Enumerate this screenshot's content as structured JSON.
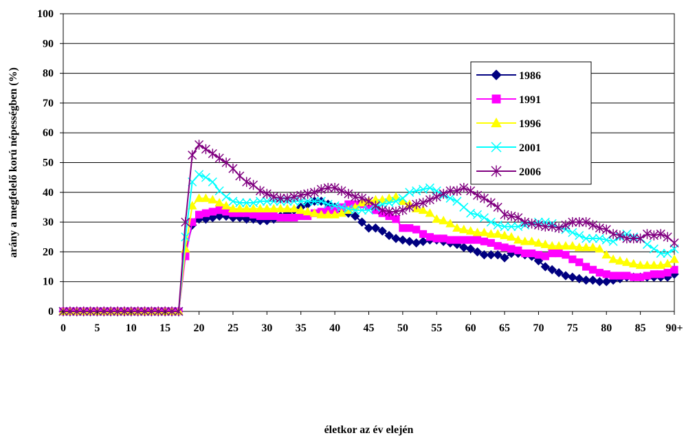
{
  "chart_data": {
    "type": "line",
    "title": "",
    "xlabel": "életkor az év elején",
    "ylabel": "arány a megfelelő korú népességben (%)",
    "ylim": [
      0,
      100
    ],
    "xlim": [
      0,
      90
    ],
    "grid": true,
    "legend_position": "top-right",
    "x_ticks": [
      "0",
      "5",
      "10",
      "15",
      "20",
      "25",
      "30",
      "35",
      "40",
      "45",
      "50",
      "55",
      "60",
      "65",
      "70",
      "75",
      "80",
      "85",
      "90+"
    ],
    "y_ticks": [
      "0",
      "10",
      "20",
      "30",
      "40",
      "50",
      "60",
      "70",
      "80",
      "90",
      "100"
    ],
    "x": [
      0,
      1,
      2,
      3,
      4,
      5,
      6,
      7,
      8,
      9,
      10,
      11,
      12,
      13,
      14,
      15,
      16,
      17,
      18,
      19,
      20,
      21,
      22,
      23,
      24,
      25,
      26,
      27,
      28,
      29,
      30,
      31,
      32,
      33,
      34,
      35,
      36,
      37,
      38,
      39,
      40,
      41,
      42,
      43,
      44,
      45,
      46,
      47,
      48,
      49,
      50,
      51,
      52,
      53,
      54,
      55,
      56,
      57,
      58,
      59,
      60,
      61,
      62,
      63,
      64,
      65,
      66,
      67,
      68,
      69,
      70,
      71,
      72,
      73,
      74,
      75,
      76,
      77,
      78,
      79,
      80,
      81,
      82,
      83,
      84,
      85,
      86,
      87,
      88,
      89,
      90
    ],
    "series": [
      {
        "name": "1986",
        "color": "#000080",
        "marker": "diamond",
        "values": [
          0,
          0,
          0,
          0,
          0,
          0,
          0,
          0,
          0,
          0,
          0,
          0,
          0,
          0,
          0,
          0,
          0,
          0,
          20,
          29,
          31,
          31,
          31.5,
          32,
          32,
          31.5,
          31.5,
          31,
          31,
          30.5,
          30.5,
          31,
          32,
          33,
          34,
          35,
          36,
          37,
          37,
          36,
          35,
          34,
          33,
          32,
          30,
          28,
          28,
          27,
          25.5,
          24.5,
          24,
          23.5,
          23,
          23.5,
          24,
          24,
          23.5,
          23,
          22.5,
          21.5,
          21,
          20,
          19,
          19,
          19,
          18,
          19.5,
          19.5,
          19,
          18.5,
          17,
          15,
          14,
          13,
          12,
          11.5,
          11,
          10.5,
          10.5,
          10,
          10,
          10.5,
          11,
          11.5,
          11.5,
          11.5,
          11.5,
          11.5,
          11.5,
          11.5,
          12.5
        ]
      },
      {
        "name": "1991",
        "color": "#FF00FF",
        "marker": "square",
        "values": [
          0,
          0,
          0,
          0,
          0,
          0,
          0,
          0,
          0,
          0,
          0,
          0,
          0,
          0,
          0,
          0,
          0,
          0,
          18.5,
          30,
          32.5,
          33,
          33.5,
          34,
          33.5,
          33,
          33,
          33,
          32.5,
          32,
          32,
          32,
          31.5,
          31.5,
          31.5,
          32,
          32,
          33,
          33.5,
          34,
          34,
          35,
          36,
          36,
          36,
          35.5,
          34,
          33,
          32,
          31,
          28,
          28,
          27.5,
          26,
          25,
          24.5,
          24.5,
          24,
          24,
          24,
          24,
          24,
          23.5,
          23,
          22,
          21.5,
          21,
          20.5,
          19.5,
          19.5,
          19,
          18.5,
          19.5,
          19.5,
          19,
          17.5,
          16.5,
          15,
          14,
          13,
          12.5,
          12,
          12,
          12,
          11.5,
          11.5,
          12,
          12.5,
          12.5,
          13,
          14
        ]
      },
      {
        "name": "1996",
        "color": "#FFFF00",
        "marker": "triangle",
        "values": [
          0,
          0,
          0,
          0,
          0,
          0,
          0,
          0,
          0,
          0,
          0,
          0,
          0,
          0,
          0,
          0,
          0,
          0,
          21,
          35.5,
          38,
          38,
          37.5,
          36.5,
          35.5,
          34.5,
          34.5,
          34.5,
          34.5,
          34.5,
          34.5,
          34.5,
          34.5,
          34.5,
          34.5,
          34,
          33.5,
          33,
          32.5,
          32.5,
          32.5,
          33,
          34,
          35,
          36.5,
          37,
          37.5,
          37.5,
          38,
          38.5,
          37,
          36,
          34.5,
          34,
          33,
          31,
          30.5,
          29.5,
          28,
          27.5,
          27,
          26.5,
          26.5,
          26,
          26,
          25.5,
          25,
          24,
          23.5,
          23.5,
          23,
          22.5,
          22,
          22,
          22,
          22,
          21.5,
          21.5,
          21.5,
          21,
          19,
          17.5,
          17,
          16.5,
          16,
          15.5,
          15.5,
          15.5,
          15.5,
          16,
          17.5
        ]
      },
      {
        "name": "2001",
        "color": "#00FFFF",
        "marker": "x",
        "values": [
          0,
          0,
          0,
          0,
          0,
          0,
          0,
          0,
          0,
          0,
          0,
          0,
          0,
          0,
          0,
          0,
          0,
          0,
          25,
          43.5,
          46,
          45,
          43.5,
          40.5,
          38.5,
          37,
          36.5,
          36.5,
          36.5,
          37,
          37,
          37,
          37,
          37,
          37,
          37,
          37,
          37,
          37,
          36,
          35.5,
          35,
          34.5,
          34,
          34,
          34,
          35,
          36,
          36.5,
          37,
          38,
          40,
          40.5,
          41,
          41.5,
          40.5,
          39,
          38,
          37,
          35,
          33,
          32.5,
          31.5,
          30,
          29,
          28.5,
          28.5,
          28.5,
          29,
          29.5,
          30,
          30,
          29.5,
          28,
          27.5,
          26.5,
          25.5,
          24.5,
          24.5,
          24.5,
          24,
          23.5,
          25,
          26,
          25,
          24.5,
          22.5,
          21,
          19.5,
          19.5,
          21
        ]
      },
      {
        "name": "2006",
        "color": "#800080",
        "marker": "star",
        "values": [
          0,
          0,
          0,
          0,
          0,
          0,
          0,
          0,
          0,
          0,
          0,
          0,
          0,
          0,
          0,
          0,
          0,
          0,
          30,
          52.5,
          56,
          54.5,
          53,
          51.5,
          50,
          48,
          45.5,
          43.5,
          42.5,
          40.5,
          39.5,
          38.5,
          38,
          38,
          38.5,
          39,
          39.5,
          40,
          41,
          41.5,
          41.5,
          40.5,
          39.5,
          38.5,
          38,
          37,
          35.5,
          34,
          33.5,
          33.5,
          34,
          35,
          36,
          36.5,
          37.5,
          38.5,
          39.5,
          40.5,
          40.5,
          41.5,
          40.5,
          39,
          38,
          36.5,
          35,
          32.5,
          32,
          31.5,
          30,
          29.5,
          29,
          28.5,
          28.5,
          28,
          29,
          30,
          30,
          30,
          29,
          28,
          27.5,
          26,
          25.5,
          24.5,
          24.5,
          24.5,
          26,
          25.5,
          26,
          25,
          23
        ]
      }
    ]
  }
}
